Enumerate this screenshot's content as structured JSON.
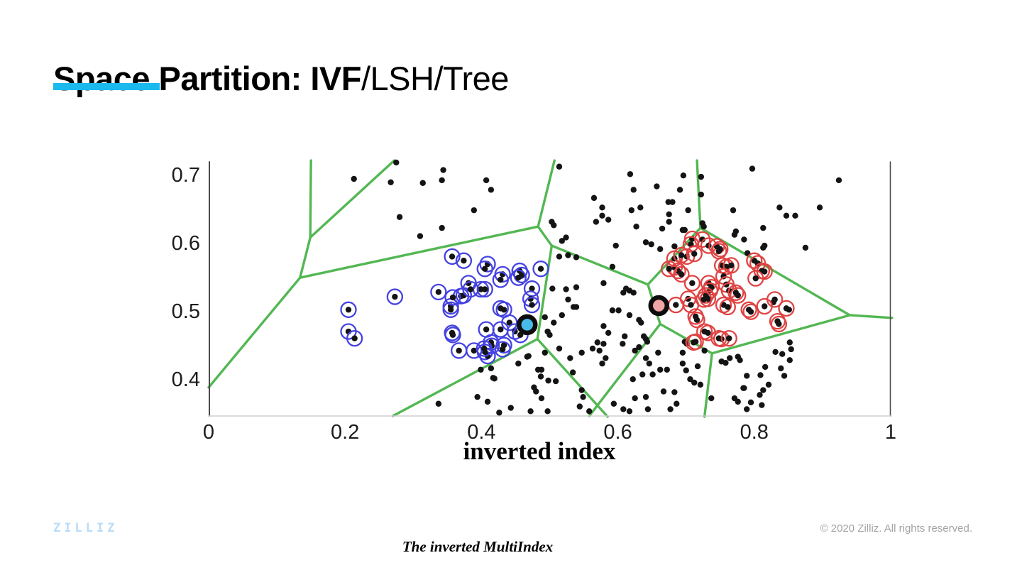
{
  "slide": {
    "title": {
      "bold": "Space Partition: IVF",
      "regular": "/LSH/Tree"
    },
    "accent_color": "#1ab9ee",
    "footer": {
      "logo": "ZILLIZ",
      "copyright": "© 2020 Zilliz. All rights reserved.",
      "caption": "The inverted MultiIndex"
    }
  },
  "chart_data": {
    "type": "scatter",
    "title": "",
    "xlabel": "inverted index",
    "ylabel": "",
    "xlim": [
      0,
      1
    ],
    "ylim": [
      0.346,
      0.72
    ],
    "grid": false,
    "x_ticks": [
      0,
      0.2,
      0.4,
      0.6,
      0.8,
      1
    ],
    "x_tick_labels": [
      "0",
      "0.2",
      "0.4",
      "0.6",
      "0.8",
      "1"
    ],
    "y_ticks": [
      0.4,
      0.5,
      0.6,
      0.7
    ],
    "y_tick_labels": [
      "0.4",
      "0.5",
      "0.6",
      "0.7"
    ],
    "colors": {
      "voronoi": "#53b753",
      "point": "#141414",
      "cluster_a_ring": "#4542e2",
      "cluster_b_ring": "#e04343",
      "centroid_a_fill": "#45bde8",
      "centroid_b_fill": "#f0a4a4",
      "centroid_stroke": "#0d0d0d",
      "axis": "#4a4a4a",
      "baseline": "#cfcfcf"
    },
    "centroids": [
      {
        "cluster": "a",
        "x": 0.467,
        "y": 0.481
      },
      {
        "cluster": "b",
        "x": 0.66,
        "y": 0.509
      }
    ],
    "voronoi_edges": [
      [
        [
          0.0,
          0.389
        ],
        [
          0.134,
          0.55
        ]
      ],
      [
        [
          0.134,
          0.55
        ],
        [
          0.149,
          0.609
        ]
      ],
      [
        [
          0.149,
          0.609
        ],
        [
          0.15,
          0.722
        ]
      ],
      [
        [
          0.149,
          0.609
        ],
        [
          0.272,
          0.722
        ]
      ],
      [
        [
          0.134,
          0.55
        ],
        [
          0.483,
          0.625
        ]
      ],
      [
        [
          0.483,
          0.625
        ],
        [
          0.507,
          0.722
        ]
      ],
      [
        [
          0.483,
          0.625
        ],
        [
          0.503,
          0.597
        ]
      ],
      [
        [
          0.503,
          0.597
        ],
        [
          0.482,
          0.46
        ]
      ],
      [
        [
          0.503,
          0.597
        ],
        [
          0.644,
          0.54
        ]
      ],
      [
        [
          0.644,
          0.54
        ],
        [
          0.662,
          0.482
        ]
      ],
      [
        [
          0.644,
          0.54
        ],
        [
          0.721,
          0.623
        ]
      ],
      [
        [
          0.721,
          0.623
        ],
        [
          0.716,
          0.722
        ]
      ],
      [
        [
          0.721,
          0.623
        ],
        [
          0.94,
          0.495
        ]
      ],
      [
        [
          0.94,
          0.495
        ],
        [
          1.002,
          0.491
        ]
      ],
      [
        [
          0.662,
          0.482
        ],
        [
          0.738,
          0.439
        ]
      ],
      [
        [
          0.738,
          0.439
        ],
        [
          0.94,
          0.495
        ]
      ],
      [
        [
          0.738,
          0.439
        ],
        [
          0.727,
          0.346
        ]
      ],
      [
        [
          0.482,
          0.46
        ],
        [
          0.27,
          0.347
        ]
      ],
      [
        [
          0.482,
          0.46
        ],
        [
          0.585,
          0.346
        ]
      ],
      [
        [
          0.662,
          0.482
        ],
        [
          0.558,
          0.347
        ]
      ]
    ],
    "points_black": [
      [
        0.213,
        0.695
      ],
      [
        0.267,
        0.69
      ],
      [
        0.314,
        0.689
      ],
      [
        0.342,
        0.693
      ],
      [
        0.275,
        0.719
      ],
      [
        0.28,
        0.639
      ],
      [
        0.31,
        0.611
      ],
      [
        0.342,
        0.623
      ],
      [
        0.344,
        0.708
      ],
      [
        0.407,
        0.693
      ],
      [
        0.414,
        0.679
      ],
      [
        0.389,
        0.649
      ],
      [
        0.514,
        0.713
      ],
      [
        0.618,
        0.702
      ],
      [
        0.696,
        0.7
      ],
      [
        0.722,
        0.698
      ],
      [
        0.657,
        0.684
      ],
      [
        0.623,
        0.679
      ],
      [
        0.691,
        0.679
      ],
      [
        0.722,
        0.672
      ],
      [
        0.565,
        0.667
      ],
      [
        0.674,
        0.661
      ],
      [
        0.68,
        0.661
      ],
      [
        0.577,
        0.653
      ],
      [
        0.62,
        0.649
      ],
      [
        0.633,
        0.653
      ],
      [
        0.703,
        0.649
      ],
      [
        0.675,
        0.643
      ],
      [
        0.577,
        0.641
      ],
      [
        0.568,
        0.632
      ],
      [
        0.586,
        0.635
      ],
      [
        0.675,
        0.632
      ],
      [
        0.627,
        0.625
      ],
      [
        0.665,
        0.622
      ],
      [
        0.724,
        0.63
      ],
      [
        0.726,
        0.625
      ],
      [
        0.698,
        0.62
      ],
      [
        0.597,
        0.597
      ],
      [
        0.641,
        0.602
      ],
      [
        0.649,
        0.599
      ],
      [
        0.683,
        0.596
      ],
      [
        0.503,
        0.632
      ],
      [
        0.506,
        0.627
      ],
      [
        0.518,
        0.604
      ],
      [
        0.524,
        0.609
      ],
      [
        0.797,
        0.71
      ],
      [
        0.924,
        0.693
      ],
      [
        0.837,
        0.653
      ],
      [
        0.896,
        0.653
      ],
      [
        0.847,
        0.641
      ],
      [
        0.86,
        0.641
      ],
      [
        0.769,
        0.649
      ],
      [
        0.813,
        0.623
      ],
      [
        0.771,
        0.613
      ],
      [
        0.785,
        0.606
      ],
      [
        0.813,
        0.594
      ],
      [
        0.875,
        0.594
      ],
      [
        0.79,
        0.586
      ],
      [
        0.695,
        0.62
      ],
      [
        0.773,
        0.618
      ],
      [
        0.815,
        0.597
      ],
      [
        0.662,
        0.592
      ],
      [
        0.504,
        0.534
      ],
      [
        0.524,
        0.533
      ],
      [
        0.539,
        0.536
      ],
      [
        0.527,
        0.518
      ],
      [
        0.535,
        0.507
      ],
      [
        0.518,
        0.495
      ],
      [
        0.506,
        0.484
      ],
      [
        0.493,
        0.492
      ],
      [
        0.497,
        0.471
      ],
      [
        0.5,
        0.466
      ],
      [
        0.514,
        0.446
      ],
      [
        0.539,
        0.507
      ],
      [
        0.493,
        0.44
      ],
      [
        0.514,
        0.581
      ],
      [
        0.527,
        0.583
      ],
      [
        0.539,
        0.58
      ],
      [
        0.592,
        0.566
      ],
      [
        0.612,
        0.534
      ],
      [
        0.617,
        0.531
      ],
      [
        0.608,
        0.528
      ],
      [
        0.623,
        0.528
      ],
      [
        0.579,
        0.542
      ],
      [
        0.592,
        0.502
      ],
      [
        0.601,
        0.502
      ],
      [
        0.617,
        0.495
      ],
      [
        0.631,
        0.488
      ],
      [
        0.634,
        0.484
      ],
      [
        0.579,
        0.479
      ],
      [
        0.586,
        0.469
      ],
      [
        0.61,
        0.464
      ],
      [
        0.638,
        0.464
      ],
      [
        0.641,
        0.46
      ],
      [
        0.643,
        0.456
      ],
      [
        0.399,
        0.415
      ],
      [
        0.414,
        0.417
      ],
      [
        0.417,
        0.403
      ],
      [
        0.454,
        0.424
      ],
      [
        0.467,
        0.434
      ],
      [
        0.488,
        0.415
      ],
      [
        0.487,
        0.405
      ],
      [
        0.498,
        0.399
      ],
      [
        0.509,
        0.398
      ],
      [
        0.477,
        0.389
      ],
      [
        0.48,
        0.383
      ],
      [
        0.488,
        0.373
      ],
      [
        0.394,
        0.375
      ],
      [
        0.409,
        0.368
      ],
      [
        0.337,
        0.365
      ],
      [
        0.426,
        0.352
      ],
      [
        0.443,
        0.359
      ],
      [
        0.472,
        0.354
      ],
      [
        0.497,
        0.354
      ],
      [
        0.53,
        0.432
      ],
      [
        0.547,
        0.44
      ],
      [
        0.57,
        0.455
      ],
      [
        0.579,
        0.453
      ],
      [
        0.573,
        0.443
      ],
      [
        0.582,
        0.432
      ],
      [
        0.577,
        0.424
      ],
      [
        0.563,
        0.446
      ],
      [
        0.607,
        0.453
      ],
      [
        0.631,
        0.448
      ],
      [
        0.625,
        0.443
      ],
      [
        0.641,
        0.432
      ],
      [
        0.646,
        0.424
      ],
      [
        0.659,
        0.44
      ],
      [
        0.662,
        0.415
      ],
      [
        0.672,
        0.415
      ],
      [
        0.651,
        0.408
      ],
      [
        0.636,
        0.408
      ],
      [
        0.622,
        0.401
      ],
      [
        0.625,
        0.373
      ],
      [
        0.641,
        0.375
      ],
      [
        0.644,
        0.357
      ],
      [
        0.617,
        0.354
      ],
      [
        0.594,
        0.365
      ],
      [
        0.608,
        0.357
      ],
      [
        0.667,
        0.383
      ],
      [
        0.683,
        0.382
      ],
      [
        0.686,
        0.365
      ],
      [
        0.677,
        0.357
      ],
      [
        0.695,
        0.424
      ],
      [
        0.7,
        0.414
      ],
      [
        0.706,
        0.401
      ],
      [
        0.712,
        0.396
      ],
      [
        0.717,
        0.42
      ],
      [
        0.721,
        0.393
      ],
      [
        0.737,
        0.373
      ],
      [
        0.752,
        0.427
      ],
      [
        0.764,
        0.432
      ],
      [
        0.776,
        0.434
      ],
      [
        0.789,
        0.406
      ],
      [
        0.784,
        0.388
      ],
      [
        0.771,
        0.373
      ],
      [
        0.795,
        0.367
      ],
      [
        0.808,
        0.378
      ],
      [
        0.547,
        0.385
      ],
      [
        0.549,
        0.375
      ],
      [
        0.544,
        0.361
      ],
      [
        0.558,
        0.354
      ],
      [
        0.698,
        0.456
      ],
      [
        0.701,
        0.453
      ],
      [
        0.695,
        0.44
      ],
      [
        0.727,
        0.443
      ],
      [
        0.469,
        0.435
      ],
      [
        0.419,
        0.402
      ],
      [
        0.534,
        0.411
      ],
      [
        0.483,
        0.415
      ],
      [
        0.831,
        0.441
      ],
      [
        0.852,
        0.455
      ],
      [
        0.854,
        0.445
      ],
      [
        0.758,
        0.425
      ],
      [
        0.828,
        0.514
      ],
      [
        0.851,
        0.503
      ],
      [
        0.841,
        0.438
      ],
      [
        0.852,
        0.429
      ],
      [
        0.816,
        0.419
      ],
      [
        0.839,
        0.417
      ],
      [
        0.844,
        0.406
      ],
      [
        0.809,
        0.407
      ],
      [
        0.821,
        0.393
      ],
      [
        0.813,
        0.385
      ],
      [
        0.785,
        0.388
      ],
      [
        0.811,
        0.363
      ],
      [
        0.789,
        0.357
      ],
      [
        0.776,
        0.368
      ],
      [
        0.779,
        0.429
      ]
    ],
    "points_circled_blue": [
      [
        0.357,
        0.581
      ],
      [
        0.374,
        0.575
      ],
      [
        0.409,
        0.57
      ],
      [
        0.405,
        0.563
      ],
      [
        0.431,
        0.555
      ],
      [
        0.428,
        0.547
      ],
      [
        0.456,
        0.56
      ],
      [
        0.459,
        0.554
      ],
      [
        0.454,
        0.55
      ],
      [
        0.487,
        0.563
      ],
      [
        0.381,
        0.542
      ],
      [
        0.399,
        0.533
      ],
      [
        0.405,
        0.533
      ],
      [
        0.37,
        0.523
      ],
      [
        0.355,
        0.508
      ],
      [
        0.355,
        0.503
      ],
      [
        0.474,
        0.534
      ],
      [
        0.472,
        0.519
      ],
      [
        0.474,
        0.51
      ],
      [
        0.428,
        0.505
      ],
      [
        0.433,
        0.503
      ],
      [
        0.441,
        0.484
      ],
      [
        0.449,
        0.471
      ],
      [
        0.407,
        0.474
      ],
      [
        0.428,
        0.474
      ],
      [
        0.357,
        0.469
      ],
      [
        0.358,
        0.466
      ],
      [
        0.414,
        0.455
      ],
      [
        0.415,
        0.45
      ],
      [
        0.433,
        0.451
      ],
      [
        0.367,
        0.443
      ],
      [
        0.389,
        0.443
      ],
      [
        0.405,
        0.441
      ],
      [
        0.409,
        0.435
      ],
      [
        0.457,
        0.466
      ],
      [
        0.273,
        0.522
      ],
      [
        0.337,
        0.529
      ],
      [
        0.358,
        0.521
      ],
      [
        0.374,
        0.524
      ],
      [
        0.384,
        0.533
      ],
      [
        0.205,
        0.503
      ],
      [
        0.205,
        0.471
      ],
      [
        0.214,
        0.461
      ],
      [
        0.404,
        0.446
      ],
      [
        0.431,
        0.445
      ]
    ],
    "points_circled_red": [
      [
        0.709,
        0.607
      ],
      [
        0.724,
        0.606
      ],
      [
        0.707,
        0.599
      ],
      [
        0.733,
        0.597
      ],
      [
        0.745,
        0.596
      ],
      [
        0.75,
        0.592
      ],
      [
        0.701,
        0.581
      ],
      [
        0.712,
        0.585
      ],
      [
        0.748,
        0.589
      ],
      [
        0.683,
        0.565
      ],
      [
        0.688,
        0.56
      ],
      [
        0.693,
        0.555
      ],
      [
        0.753,
        0.568
      ],
      [
        0.759,
        0.566
      ],
      [
        0.766,
        0.568
      ],
      [
        0.755,
        0.552
      ],
      [
        0.8,
        0.575
      ],
      [
        0.805,
        0.571
      ],
      [
        0.811,
        0.56
      ],
      [
        0.815,
        0.559
      ],
      [
        0.802,
        0.549
      ],
      [
        0.709,
        0.542
      ],
      [
        0.733,
        0.542
      ],
      [
        0.737,
        0.536
      ],
      [
        0.735,
        0.531
      ],
      [
        0.759,
        0.54
      ],
      [
        0.729,
        0.524
      ],
      [
        0.732,
        0.519
      ],
      [
        0.726,
        0.518
      ],
      [
        0.763,
        0.531
      ],
      [
        0.773,
        0.528
      ],
      [
        0.776,
        0.524
      ],
      [
        0.703,
        0.519
      ],
      [
        0.685,
        0.51
      ],
      [
        0.707,
        0.51
      ],
      [
        0.755,
        0.51
      ],
      [
        0.761,
        0.507
      ],
      [
        0.714,
        0.493
      ],
      [
        0.716,
        0.488
      ],
      [
        0.792,
        0.503
      ],
      [
        0.795,
        0.5
      ],
      [
        0.815,
        0.508
      ],
      [
        0.83,
        0.518
      ],
      [
        0.847,
        0.505
      ],
      [
        0.834,
        0.486
      ],
      [
        0.836,
        0.482
      ],
      [
        0.727,
        0.471
      ],
      [
        0.732,
        0.469
      ],
      [
        0.714,
        0.456
      ],
      [
        0.748,
        0.461
      ],
      [
        0.752,
        0.46
      ],
      [
        0.763,
        0.461
      ],
      [
        0.675,
        0.563
      ],
      [
        0.683,
        0.578
      ],
      [
        0.693,
        0.583
      ],
      [
        0.711,
        0.455
      ]
    ]
  }
}
